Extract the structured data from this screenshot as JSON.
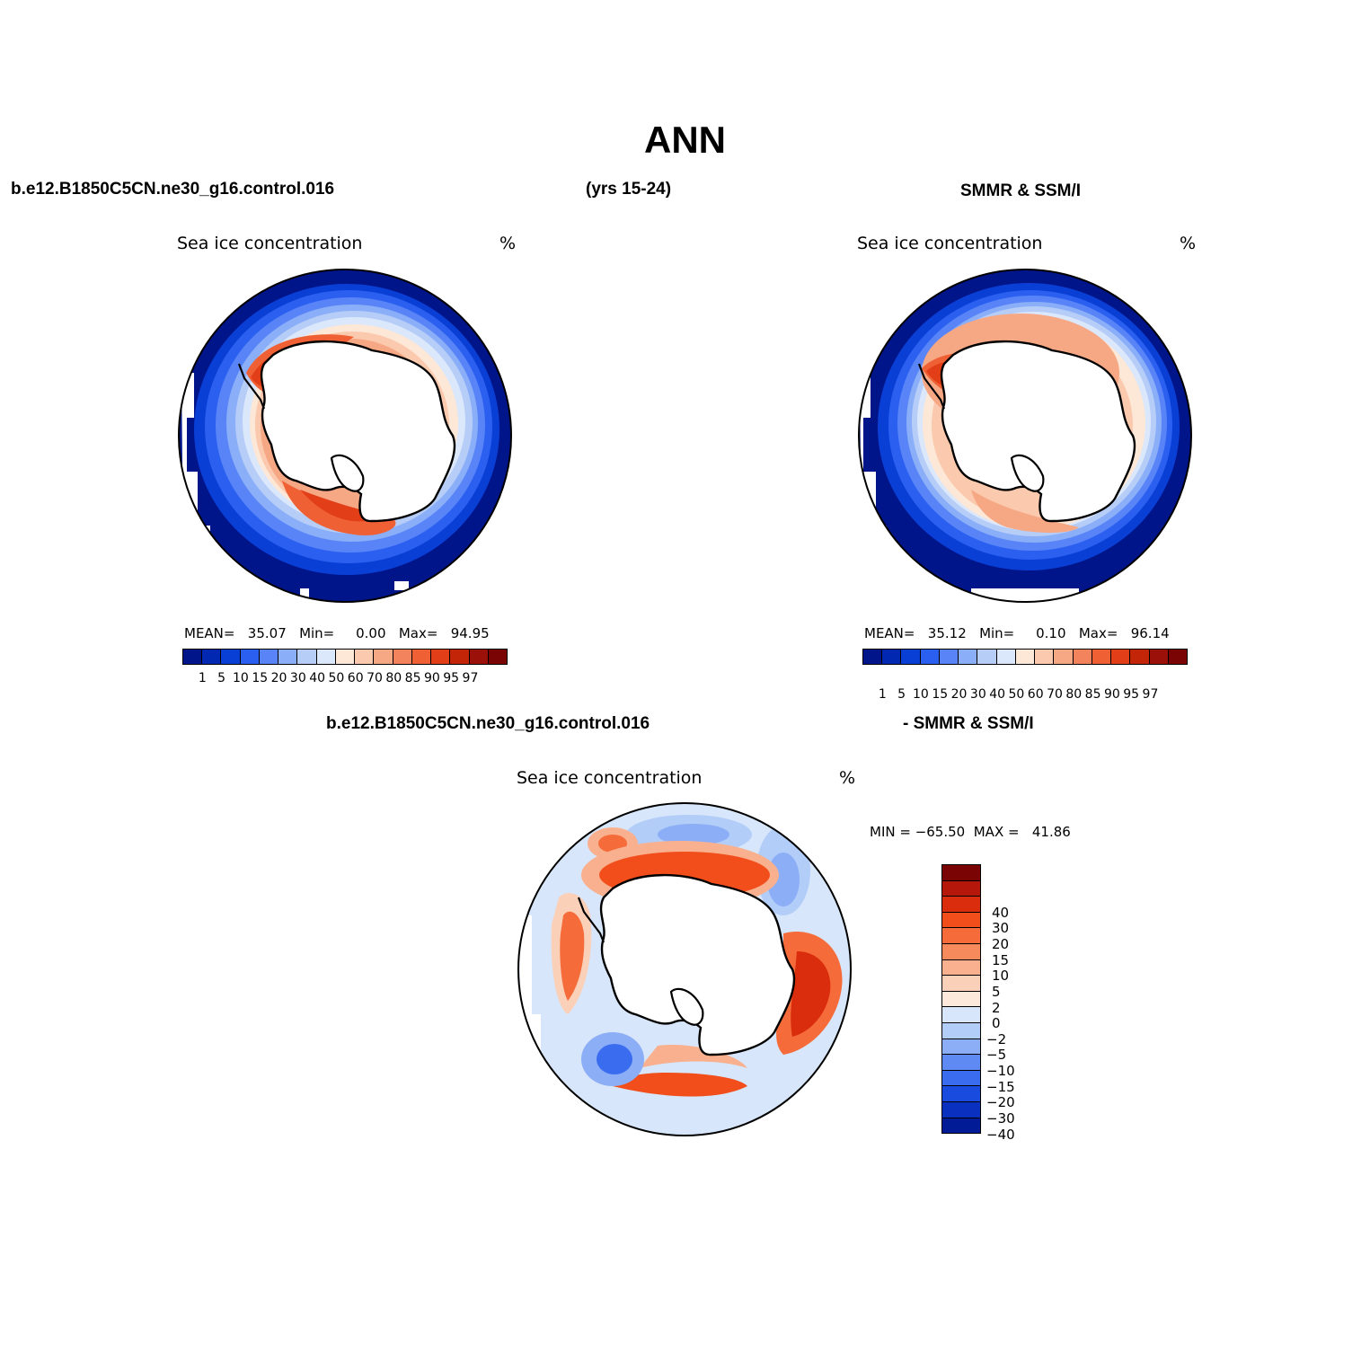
{
  "figure": {
    "title": "ANN",
    "case_name": "b.e12.B1850C5CN.ne30_g16.control.016",
    "years": "(yrs 15-24)",
    "obs_name": "SMMR & SSM/I",
    "diff_case": "b.e12.B1850C5CN.ne30_g16.control.016",
    "diff_obs": "- SMMR & SSM/I"
  },
  "panels": {
    "model": {
      "title": "Sea ice concentration",
      "units": "%",
      "stats": {
        "mean_label": "MEAN=",
        "mean": "35.07",
        "min_label": "Min=",
        "min": "0.00",
        "max_label": "Max=",
        "max": "94.95"
      }
    },
    "obs": {
      "title": "Sea ice concentration",
      "units": "%",
      "stats": {
        "mean_label": "MEAN=",
        "mean": "35.12",
        "min_label": "Min=",
        "min": "0.10",
        "max_label": "Max=",
        "max": "96.14"
      }
    },
    "diff": {
      "title": "Sea ice concentration",
      "units": "%",
      "minmax": "MIN = −65.50  MAX =   41.86"
    }
  },
  "colorbar_abs": {
    "colors": [
      "#00158a",
      "#0028b0",
      "#0a3fd6",
      "#2a5ff0",
      "#5884f7",
      "#8aaef8",
      "#b6cdf8",
      "#dbe7fb",
      "#fde7d6",
      "#fbc9ad",
      "#f6a784",
      "#f2835c",
      "#ef6034",
      "#e23f18",
      "#c22508",
      "#9b1008",
      "#7a0404"
    ],
    "labels": [
      "1",
      "5",
      "10",
      "15",
      "20",
      "30",
      "40",
      "50",
      "60",
      "70",
      "80",
      "85",
      "90",
      "95",
      "97"
    ]
  },
  "colorbar_diff": {
    "colors": [
      "#7a0404",
      "#b5180a",
      "#d92d0d",
      "#f24e1c",
      "#f56b3a",
      "#f68a5c",
      "#f9b08f",
      "#fbd0b8",
      "#fde9dc",
      "#d7e6fa",
      "#b3cdf9",
      "#8caef7",
      "#5f8af3",
      "#3a6cf0",
      "#1a4bdf",
      "#0a30c0",
      "#001b95"
    ],
    "labels": [
      "40",
      "30",
      "20",
      "15",
      "10",
      "5",
      "2",
      "0",
      "−2",
      "−5",
      "−10",
      "−15",
      "−20",
      "−30",
      "−40"
    ]
  },
  "chart_data": [
    {
      "type": "heatmap",
      "title": "Sea ice concentration",
      "units": "%",
      "projection": "south-polar stereographic",
      "stats": {
        "mean": 35.07,
        "min": 0.0,
        "max": 94.95
      },
      "levels": [
        1,
        5,
        10,
        15,
        20,
        30,
        40,
        50,
        60,
        70,
        80,
        85,
        90,
        95,
        97
      ]
    },
    {
      "type": "heatmap",
      "title": "Sea ice concentration",
      "units": "%",
      "projection": "south-polar stereographic",
      "stats": {
        "mean": 35.12,
        "min": 0.1,
        "max": 96.14
      },
      "levels": [
        1,
        5,
        10,
        15,
        20,
        30,
        40,
        50,
        60,
        70,
        80,
        85,
        90,
        95,
        97
      ]
    },
    {
      "type": "heatmap",
      "title": "Sea ice concentration",
      "units": "%",
      "projection": "south-polar stereographic",
      "stats": {
        "min": -65.5,
        "max": 41.86
      },
      "levels": [
        -40,
        -30,
        -20,
        -15,
        -10,
        -5,
        -2,
        0,
        2,
        5,
        10,
        15,
        20,
        30,
        40
      ]
    }
  ]
}
